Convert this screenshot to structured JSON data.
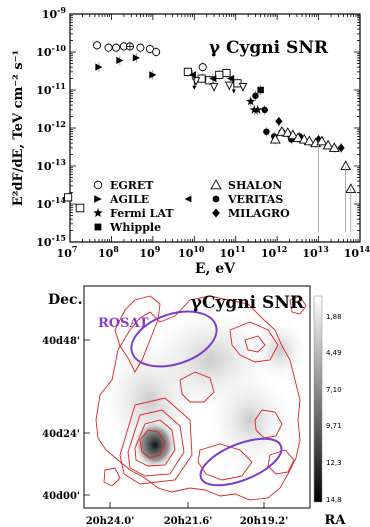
{
  "chart_data": [
    {
      "type": "scatter",
      "title": "γ Cygni SNR",
      "xlabel": "E, eV",
      "ylabel": "E²dF/dE, TeV cm⁻² s⁻¹",
      "x_scale": "log",
      "y_scale": "log",
      "xlim": [
        10000000,
        100000000000000
      ],
      "ylim": [
        1e-15,
        1e-09
      ],
      "x_tick_labels": [
        "10^7",
        "10^8",
        "10^9",
        "10^10",
        "10^11",
        "10^12",
        "10^13",
        "10^14"
      ],
      "y_tick_labels": [
        "10^-15",
        "10^-14",
        "10^-13",
        "10^-12",
        "10^-11",
        "10^-10",
        "10^-9"
      ],
      "legend": [
        {
          "name": "EGRET",
          "marker": "circle-open"
        },
        {
          "name": "SHALON",
          "marker": "triangle-open"
        },
        {
          "name": "AGILE",
          "marker": "triangle-right"
        },
        {
          "name": "VERITAS",
          "marker": "circle-filled"
        },
        {
          "name": "Fermi LAT",
          "marker": "star"
        },
        {
          "name": "MILAGRO",
          "marker": "diamond"
        },
        {
          "name": "Whipple",
          "marker": "square-filled"
        }
      ],
      "series": [
        {
          "name": "EGRET",
          "marker": "circle-open",
          "points": [
            [
              45000000,
              1.5e-10
            ],
            [
              85000000,
              1.3e-10
            ],
            [
              130000000,
              1.3e-10
            ],
            [
              200000000,
              1.4e-10
            ],
            [
              500000000,
              1.3e-10
            ],
            [
              850000000,
              1.2e-10
            ],
            [
              1200000000,
              1e-10
            ],
            [
              16000000000,
              4e-11
            ]
          ]
        },
        {
          "name": "EGRET (crossed)",
          "marker": "circle-cross",
          "points": [
            [
              280000000,
              1.4e-10
            ]
          ]
        },
        {
          "name": "open-square",
          "marker": "square-open",
          "points": [
            [
              9000000,
              1.5e-14
            ],
            [
              7000000000,
              3e-11
            ],
            [
              15000000000,
              2e-11
            ],
            [
              23000000000,
              1.8e-11
            ],
            [
              40000000000,
              2.5e-11
            ],
            [
              60000000000,
              2.8e-11
            ],
            [
              110000000000,
              1.5e-11
            ]
          ]
        },
        {
          "name": "open-triangle-down",
          "marker": "triangle-down-open",
          "points": [
            [
              11000000000,
              1.7e-11
            ],
            [
              30000000000,
              1.2e-11
            ],
            [
              70000000000,
              1.3e-11
            ],
            [
              150000000000,
              1.2e-11
            ]
          ]
        },
        {
          "name": "AGILE",
          "marker": "triangle-right",
          "points": [
            [
              50000000,
              4e-11
            ],
            [
              160000000,
              6e-11
            ],
            [
              400000000,
              7e-11
            ],
            [
              1000000000,
              2.5e-11
            ]
          ]
        },
        {
          "name": "left-triangle",
          "marker": "triangle-left",
          "points": [
            [
              9000000000,
              2.5e-11
            ],
            [
              28000000000,
              2e-11
            ],
            [
              75000000000,
              2e-11
            ]
          ]
        },
        {
          "name": "Fermi LAT",
          "marker": "star",
          "points": [
            [
              230000000000,
              5e-12
            ],
            [
              280000000000,
              3e-12
            ],
            [
              340000000000,
              3e-12
            ]
          ]
        },
        {
          "name": "Whipple",
          "marker": "square-filled",
          "points": [
            [
              400000000000,
              1e-11
            ]
          ]
        },
        {
          "name": "VERITAS",
          "marker": "circle-filled",
          "points": [
            [
              300000000000,
              7e-12
            ],
            [
              500000000000,
              3e-12
            ],
            [
              550000000000,
              8e-13
            ],
            [
              850000000000,
              6e-13
            ],
            [
              1300000000000,
              8e-13
            ],
            [
              2200000000000,
              5e-13
            ],
            [
              3500000000000,
              6e-13
            ]
          ]
        },
        {
          "name": "MILAGRO",
          "marker": "diamond",
          "points": [
            [
              1100000000000,
              1.5e-12
            ],
            [
              2100000000000,
              6e-13
            ],
            [
              10000000000000,
              5e-13
            ],
            [
              35000000000000,
              3e-13
            ]
          ]
        },
        {
          "name": "SHALON",
          "marker": "triangle-open",
          "points": [
            [
              900000000000,
              5e-13
            ],
            [
              1300000000000,
              8e-13
            ],
            [
              1800000000000,
              7.5e-13
            ],
            [
              2400000000000,
              6.5e-13
            ],
            [
              3200000000000,
              5.5e-13
            ],
            [
              4500000000000,
              5e-13
            ],
            [
              6000000000000,
              4.5e-13
            ],
            [
              8500000000000,
              4e-13
            ],
            [
              12000000000000,
              4.5e-13
            ],
            [
              17000000000000,
              3.5e-13
            ],
            [
              24000000000000,
              3e-13
            ],
            [
              45000000000000,
              1e-13
            ],
            [
              60000000000000,
              2.5e-14
            ]
          ]
        }
      ]
    },
    {
      "type": "heatmap",
      "title": "γCygni SNR",
      "ylabel": "Dec.",
      "xlabel": "RA",
      "x_tick_labels": [
        "20h24.0'",
        "20h21.6'",
        "20h19.2'"
      ],
      "y_tick_labels": [
        "40d48'",
        "40d24'",
        "40d00'"
      ],
      "colorbar_labels": [
        "1,88",
        "4,49",
        "7,10",
        "9,71",
        "12,3",
        "14,8"
      ],
      "overlay_label": "ROSAT",
      "colors": {
        "contours": "#e02020",
        "ellipses": "#7a3cd0",
        "label": "#8a3cc8"
      }
    }
  ]
}
